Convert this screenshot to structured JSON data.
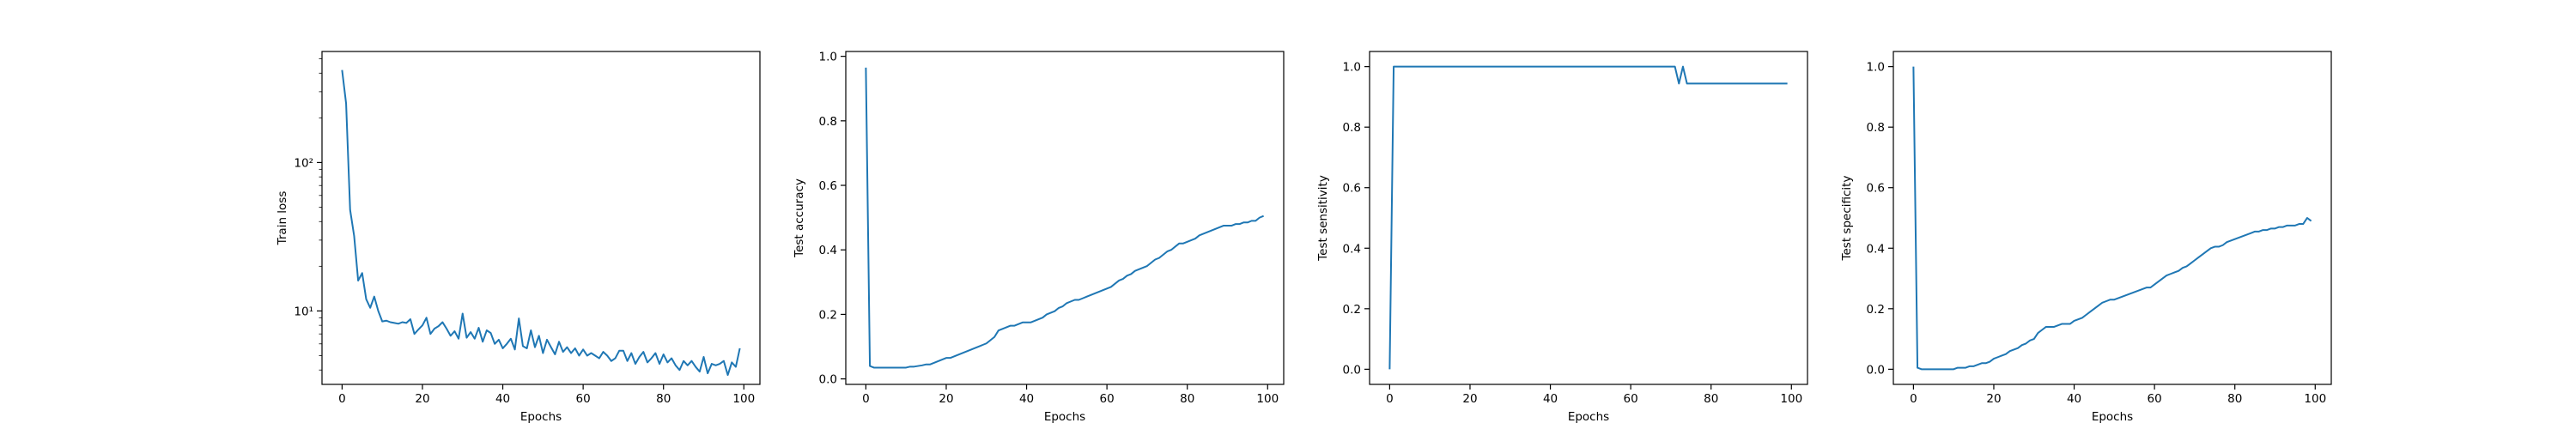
{
  "figure": {
    "line_color": "#1f77b4",
    "background": "#ffffff"
  },
  "chart_data": [
    {
      "type": "line",
      "ylabel": "Train loss",
      "xlabel": "Epochs",
      "yscale": "log",
      "xlim": [
        -5,
        104
      ],
      "ylim": [
        3.2,
        560
      ],
      "xticks": [
        0,
        20,
        40,
        60,
        80,
        100
      ],
      "xtick_labels": [
        "0",
        "20",
        "40",
        "60",
        "80",
        "100"
      ],
      "yticks": [
        10,
        100
      ],
      "ytick_labels": [
        "10¹",
        "10²"
      ],
      "grid": false,
      "series": [
        {
          "x": [
            0,
            1,
            2,
            3,
            4,
            5,
            6,
            7,
            8,
            9,
            10,
            11,
            12,
            13,
            14,
            15,
            16,
            17,
            18,
            19,
            20,
            21,
            22,
            23,
            24,
            25,
            26,
            27,
            28,
            29,
            30,
            31,
            32,
            33,
            34,
            35,
            36,
            37,
            38,
            39,
            40,
            41,
            42,
            43,
            44,
            45,
            46,
            47,
            48,
            49,
            50,
            51,
            52,
            53,
            54,
            55,
            56,
            57,
            58,
            59,
            60,
            61,
            62,
            63,
            64,
            65,
            66,
            67,
            68,
            69,
            70,
            71,
            72,
            73,
            74,
            75,
            76,
            77,
            78,
            79,
            80,
            81,
            82,
            83,
            84,
            85,
            86,
            87,
            88,
            89,
            90,
            91,
            92,
            93,
            94,
            95,
            96,
            97,
            98,
            99
          ],
          "y": [
            420,
            250,
            48,
            32,
            16,
            18,
            12,
            10.5,
            12.5,
            10,
            8.5,
            8.6,
            8.4,
            8.3,
            8.2,
            8.4,
            8.3,
            8.8,
            7.0,
            7.5,
            8.0,
            9.0,
            7.0,
            7.6,
            7.9,
            8.4,
            7.6,
            6.8,
            7.3,
            6.5,
            9.6,
            6.6,
            7.2,
            6.5,
            7.7,
            6.2,
            7.4,
            7.1,
            6.0,
            6.4,
            5.6,
            6.0,
            6.5,
            5.5,
            8.9,
            5.8,
            5.6,
            7.4,
            5.7,
            6.8,
            5.2,
            6.4,
            5.7,
            5.1,
            6.2,
            5.3,
            5.7,
            5.2,
            5.6,
            5.0,
            5.5,
            5.0,
            5.2,
            5.0,
            4.8,
            5.3,
            5.0,
            4.6,
            4.8,
            5.4,
            5.4,
            4.6,
            5.2,
            4.4,
            4.9,
            5.3,
            4.5,
            4.8,
            5.2,
            4.4,
            5.1,
            4.5,
            4.8,
            4.3,
            4.0,
            4.6,
            4.3,
            4.6,
            4.2,
            3.9,
            4.9,
            3.8,
            4.4,
            4.3,
            4.4,
            4.6,
            3.7,
            4.5,
            4.2,
            5.6
          ]
        }
      ]
    },
    {
      "type": "line",
      "ylabel": "Test accuracy",
      "xlabel": "Epochs",
      "yscale": "linear",
      "xlim": [
        -5,
        104
      ],
      "ylim": [
        -0.017,
        1.015
      ],
      "xticks": [
        0,
        20,
        40,
        60,
        80,
        100
      ],
      "xtick_labels": [
        "0",
        "20",
        "40",
        "60",
        "80",
        "100"
      ],
      "yticks": [
        0.0,
        0.2,
        0.4,
        0.6,
        0.8,
        1.0
      ],
      "ytick_labels": [
        "0.0",
        "0.2",
        "0.4",
        "0.6",
        "0.8",
        "1.0"
      ],
      "grid": false,
      "series": [
        {
          "x": [
            0,
            1,
            2,
            3,
            4,
            5,
            6,
            7,
            8,
            9,
            10,
            11,
            12,
            13,
            14,
            15,
            16,
            17,
            18,
            19,
            20,
            21,
            22,
            23,
            24,
            25,
            26,
            27,
            28,
            29,
            30,
            31,
            32,
            33,
            34,
            35,
            36,
            37,
            38,
            39,
            40,
            41,
            42,
            43,
            44,
            45,
            46,
            47,
            48,
            49,
            50,
            51,
            52,
            53,
            54,
            55,
            56,
            57,
            58,
            59,
            60,
            61,
            62,
            63,
            64,
            65,
            66,
            67,
            68,
            69,
            70,
            71,
            72,
            73,
            74,
            75,
            76,
            77,
            78,
            79,
            80,
            81,
            82,
            83,
            84,
            85,
            86,
            87,
            88,
            89,
            90,
            91,
            92,
            93,
            94,
            95,
            96,
            97,
            98,
            99
          ],
          "y": [
            0.965,
            0.04,
            0.035,
            0.035,
            0.035,
            0.035,
            0.035,
            0.035,
            0.035,
            0.035,
            0.035,
            0.038,
            0.038,
            0.04,
            0.042,
            0.045,
            0.045,
            0.05,
            0.055,
            0.06,
            0.065,
            0.065,
            0.07,
            0.075,
            0.08,
            0.085,
            0.09,
            0.095,
            0.1,
            0.105,
            0.11,
            0.12,
            0.13,
            0.15,
            0.155,
            0.16,
            0.165,
            0.165,
            0.17,
            0.175,
            0.175,
            0.175,
            0.18,
            0.185,
            0.19,
            0.2,
            0.205,
            0.21,
            0.22,
            0.225,
            0.235,
            0.24,
            0.245,
            0.245,
            0.25,
            0.255,
            0.26,
            0.265,
            0.27,
            0.275,
            0.28,
            0.285,
            0.295,
            0.305,
            0.31,
            0.32,
            0.325,
            0.335,
            0.34,
            0.345,
            0.35,
            0.36,
            0.37,
            0.375,
            0.385,
            0.395,
            0.4,
            0.41,
            0.42,
            0.42,
            0.425,
            0.43,
            0.435,
            0.445,
            0.45,
            0.455,
            0.46,
            0.465,
            0.47,
            0.475,
            0.475,
            0.475,
            0.48,
            0.48,
            0.485,
            0.485,
            0.49,
            0.49,
            0.5,
            0.505
          ]
        }
      ]
    },
    {
      "type": "line",
      "ylabel": "Test sensitivity",
      "xlabel": "Epochs",
      "yscale": "linear",
      "xlim": [
        -5,
        104
      ],
      "ylim": [
        -0.05,
        1.05
      ],
      "xticks": [
        0,
        20,
        40,
        60,
        80,
        100
      ],
      "xtick_labels": [
        "0",
        "20",
        "40",
        "60",
        "80",
        "100"
      ],
      "yticks": [
        0.0,
        0.2,
        0.4,
        0.6,
        0.8,
        1.0
      ],
      "ytick_labels": [
        "0.0",
        "0.2",
        "0.4",
        "0.6",
        "0.8",
        "1.0"
      ],
      "grid": false,
      "series": [
        {
          "x": [
            0,
            1,
            2,
            3,
            4,
            5,
            6,
            7,
            8,
            9,
            10,
            11,
            12,
            13,
            14,
            15,
            16,
            17,
            18,
            19,
            20,
            21,
            22,
            23,
            24,
            25,
            26,
            27,
            28,
            29,
            30,
            31,
            32,
            33,
            34,
            35,
            36,
            37,
            38,
            39,
            40,
            41,
            42,
            43,
            44,
            45,
            46,
            47,
            48,
            49,
            50,
            51,
            52,
            53,
            54,
            55,
            56,
            57,
            58,
            59,
            60,
            61,
            62,
            63,
            64,
            65,
            66,
            67,
            68,
            69,
            70,
            71,
            72,
            73,
            74,
            75,
            76,
            77,
            78,
            79,
            80,
            81,
            82,
            83,
            84,
            85,
            86,
            87,
            88,
            89,
            90,
            91,
            92,
            93,
            94,
            95,
            96,
            97,
            98,
            99
          ],
          "y": [
            0.0,
            1,
            1,
            1,
            1,
            1,
            1,
            1,
            1,
            1,
            1,
            1,
            1,
            1,
            1,
            1,
            1,
            1,
            1,
            1,
            1,
            1,
            1,
            1,
            1,
            1,
            1,
            1,
            1,
            1,
            1,
            1,
            1,
            1,
            1,
            1,
            1,
            1,
            1,
            1,
            1,
            1,
            1,
            1,
            1,
            1,
            1,
            1,
            1,
            1,
            1,
            1,
            1,
            1,
            1,
            1,
            1,
            1,
            1,
            1,
            1,
            1,
            1,
            1,
            1,
            1,
            1,
            1,
            1,
            1,
            1,
            1,
            0.944,
            1,
            0.944,
            0.944,
            0.944,
            0.944,
            0.944,
            0.944,
            0.944,
            0.944,
            0.944,
            0.944,
            0.944,
            0.944,
            0.944,
            0.944,
            0.944,
            0.944,
            0.944,
            0.944,
            0.944,
            0.944,
            0.944,
            0.944,
            0.944,
            0.944,
            0.944,
            0.944
          ]
        }
      ]
    },
    {
      "type": "line",
      "ylabel": "Test specificity",
      "xlabel": "Epochs",
      "yscale": "linear",
      "xlim": [
        -5,
        104
      ],
      "ylim": [
        -0.05,
        1.05
      ],
      "xticks": [
        0,
        20,
        40,
        60,
        80,
        100
      ],
      "xtick_labels": [
        "0",
        "20",
        "40",
        "60",
        "80",
        "100"
      ],
      "yticks": [
        0.0,
        0.2,
        0.4,
        0.6,
        0.8,
        1.0
      ],
      "ytick_labels": [
        "0.0",
        "0.2",
        "0.4",
        "0.6",
        "0.8",
        "1.0"
      ],
      "grid": false,
      "series": [
        {
          "x": [
            0,
            1,
            2,
            3,
            4,
            5,
            6,
            7,
            8,
            9,
            10,
            11,
            12,
            13,
            14,
            15,
            16,
            17,
            18,
            19,
            20,
            21,
            22,
            23,
            24,
            25,
            26,
            27,
            28,
            29,
            30,
            31,
            32,
            33,
            34,
            35,
            36,
            37,
            38,
            39,
            40,
            41,
            42,
            43,
            44,
            45,
            46,
            47,
            48,
            49,
            50,
            51,
            52,
            53,
            54,
            55,
            56,
            57,
            58,
            59,
            60,
            61,
            62,
            63,
            64,
            65,
            66,
            67,
            68,
            69,
            70,
            71,
            72,
            73,
            74,
            75,
            76,
            77,
            78,
            79,
            80,
            81,
            82,
            83,
            84,
            85,
            86,
            87,
            88,
            89,
            90,
            91,
            92,
            93,
            94,
            95,
            96,
            97,
            98,
            99
          ],
          "y": [
            1.0,
            0.005,
            0.0,
            0.0,
            0.0,
            0.0,
            0.0,
            0.0,
            0.0,
            0.0,
            0.0,
            0.005,
            0.005,
            0.005,
            0.01,
            0.01,
            0.015,
            0.02,
            0.02,
            0.025,
            0.035,
            0.04,
            0.045,
            0.05,
            0.06,
            0.065,
            0.07,
            0.08,
            0.085,
            0.095,
            0.1,
            0.12,
            0.13,
            0.14,
            0.14,
            0.14,
            0.145,
            0.15,
            0.15,
            0.15,
            0.16,
            0.165,
            0.17,
            0.18,
            0.19,
            0.2,
            0.21,
            0.22,
            0.225,
            0.23,
            0.23,
            0.235,
            0.24,
            0.245,
            0.25,
            0.255,
            0.26,
            0.265,
            0.27,
            0.27,
            0.28,
            0.29,
            0.3,
            0.31,
            0.315,
            0.32,
            0.325,
            0.335,
            0.34,
            0.35,
            0.36,
            0.37,
            0.38,
            0.39,
            0.4,
            0.405,
            0.405,
            0.41,
            0.42,
            0.425,
            0.43,
            0.435,
            0.44,
            0.445,
            0.45,
            0.455,
            0.455,
            0.46,
            0.46,
            0.465,
            0.465,
            0.47,
            0.47,
            0.475,
            0.475,
            0.475,
            0.48,
            0.48,
            0.5,
            0.49
          ]
        }
      ]
    }
  ]
}
